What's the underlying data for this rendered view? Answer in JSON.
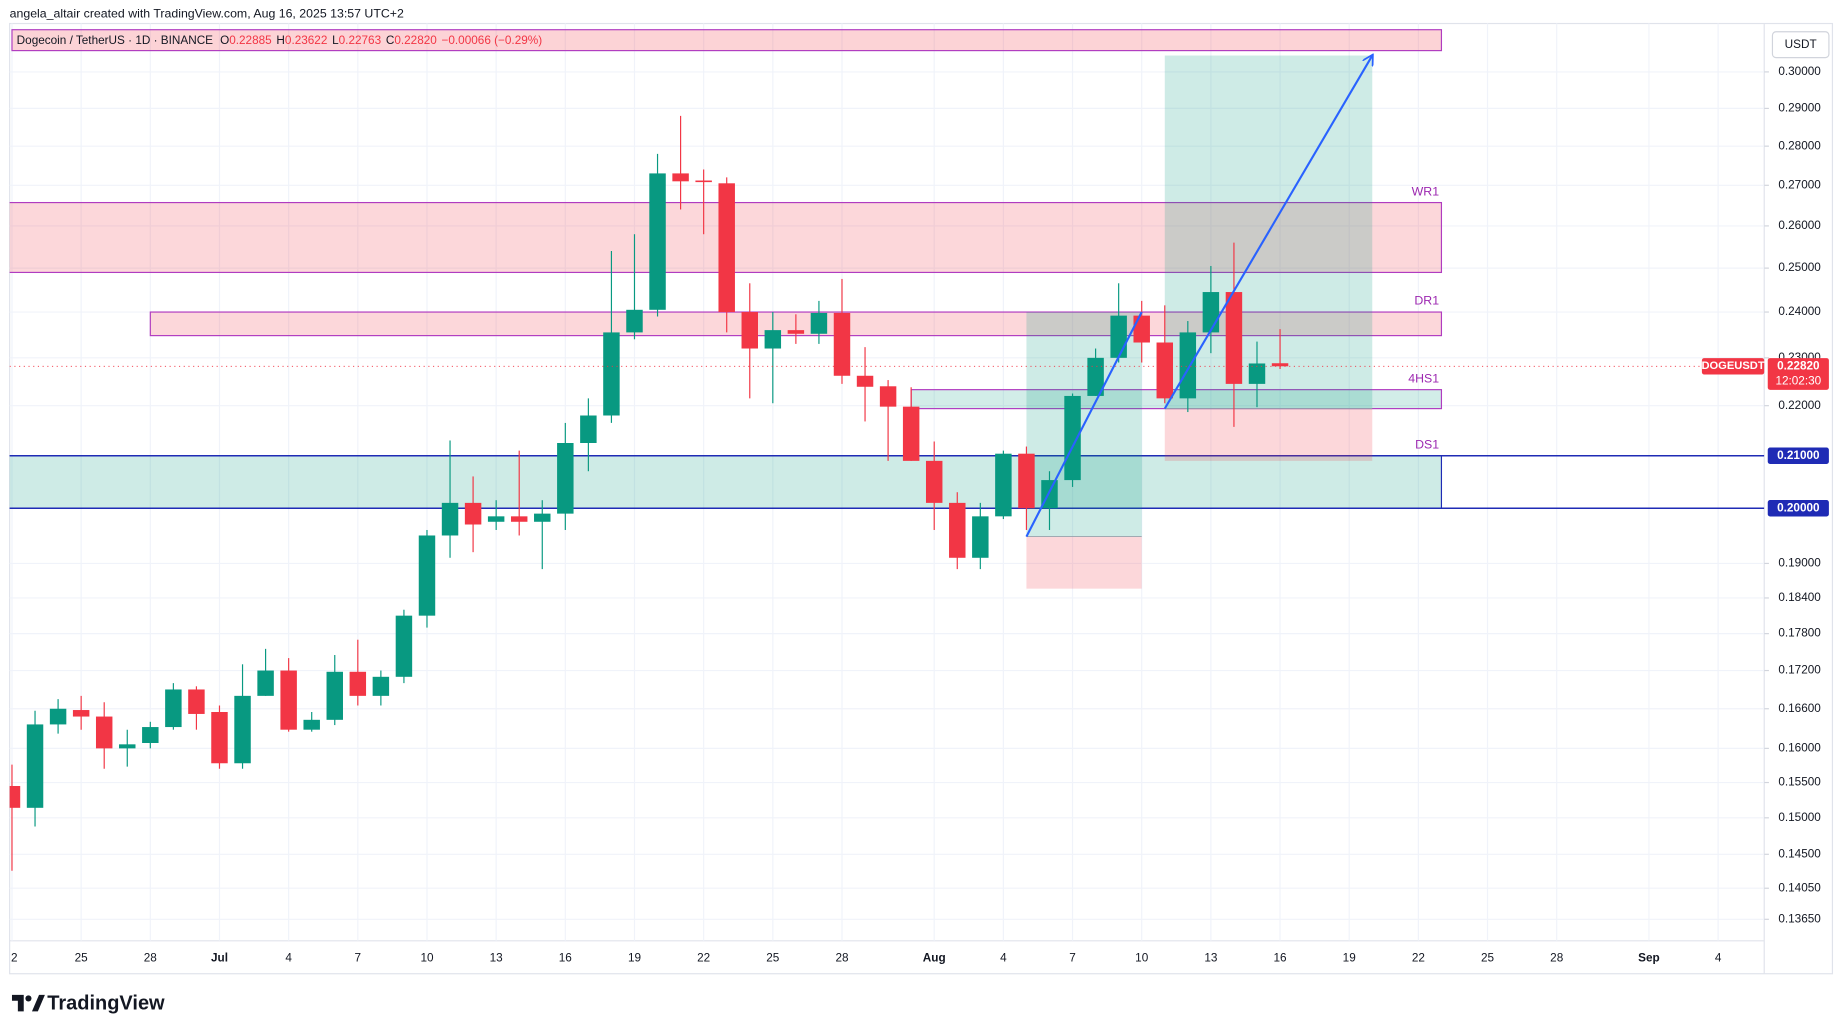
{
  "chart_data": {
    "type": "candlestick",
    "attribution": "angela_altair created with TradingView.com, Aug 16, 2025 13:57 UTC+2",
    "symbol": "Dogecoin / TetherUS · 1D · BINANCE",
    "legend": [
      {
        "label": "O",
        "value": "0.22885"
      },
      {
        "label": "H",
        "value": "0.23622"
      },
      {
        "label": "L",
        "value": "0.22763"
      },
      {
        "label": "C",
        "value": "0.22820"
      }
    ],
    "change": "−0.00066 (−0.29%)",
    "currency": "USDT",
    "ticker": "DOGEUSDT",
    "last_price": {
      "value": 0.2282,
      "label": "0.22820"
    },
    "countdown": "12:02:30",
    "brand": "TradingView",
    "up_color": "#089981",
    "down_color": "#f23645",
    "x": [
      "2025-06-22",
      "2025-06-23",
      "2025-06-24",
      "2025-06-25",
      "2025-06-26",
      "2025-06-27",
      "2025-06-28",
      "2025-06-29",
      "2025-06-30",
      "2025-07-01",
      "2025-07-02",
      "2025-07-03",
      "2025-07-04",
      "2025-07-05",
      "2025-07-06",
      "2025-07-07",
      "2025-07-08",
      "2025-07-09",
      "2025-07-10",
      "2025-07-11",
      "2025-07-12",
      "2025-07-13",
      "2025-07-14",
      "2025-07-15",
      "2025-07-16",
      "2025-07-17",
      "2025-07-18",
      "2025-07-19",
      "2025-07-20",
      "2025-07-21",
      "2025-07-22",
      "2025-07-23",
      "2025-07-24",
      "2025-07-25",
      "2025-07-26",
      "2025-07-27",
      "2025-07-28",
      "2025-07-29",
      "2025-07-30",
      "2025-07-31",
      "2025-08-01",
      "2025-08-02",
      "2025-08-03",
      "2025-08-04",
      "2025-08-05",
      "2025-08-06",
      "2025-08-07",
      "2025-08-08",
      "2025-08-09",
      "2025-08-10",
      "2025-08-11",
      "2025-08-12",
      "2025-08-13",
      "2025-08-14",
      "2025-08-15",
      "2025-08-16"
    ],
    "open": [
      0.1545,
      0.1514,
      0.1636,
      0.1658,
      0.1648,
      0.16,
      0.1608,
      0.1632,
      0.169,
      0.1655,
      0.1578,
      0.168,
      0.172,
      0.1628,
      0.1643,
      0.1718,
      0.168,
      0.171,
      0.181,
      0.195,
      0.201,
      0.1975,
      0.1985,
      0.1975,
      0.199,
      0.2125,
      0.218,
      0.2355,
      0.2405,
      0.273,
      0.2712,
      0.2705,
      0.24,
      0.232,
      0.236,
      0.2352,
      0.2398,
      0.2262,
      0.224,
      0.2198,
      0.209,
      0.201,
      0.191,
      0.1985,
      0.2104,
      0.2,
      0.2053,
      0.222,
      0.23,
      0.2392,
      0.2333,
      0.2215,
      0.2355,
      0.2445,
      0.2245,
      0.22885
    ],
    "high": [
      0.1576,
      0.1657,
      0.1675,
      0.168,
      0.167,
      0.1628,
      0.164,
      0.17,
      0.1695,
      0.1665,
      0.173,
      0.1755,
      0.174,
      0.1655,
      0.1745,
      0.177,
      0.172,
      0.182,
      0.196,
      0.213,
      0.206,
      0.2015,
      0.211,
      0.2015,
      0.2165,
      0.2215,
      0.254,
      0.258,
      0.278,
      0.288,
      0.274,
      0.272,
      0.2465,
      0.24,
      0.2395,
      0.2425,
      0.2475,
      0.2323,
      0.2253,
      0.2238,
      0.2128,
      0.203,
      0.201,
      0.211,
      0.2118,
      0.207,
      0.2225,
      0.232,
      0.2465,
      0.2425,
      0.2415,
      0.238,
      0.2505,
      0.256,
      0.2335,
      0.23622
    ],
    "low": [
      0.1428,
      0.1488,
      0.1622,
      0.1628,
      0.157,
      0.1573,
      0.16,
      0.1628,
      0.1628,
      0.157,
      0.157,
      0.168,
      0.1625,
      0.1625,
      0.1635,
      0.1665,
      0.1665,
      0.17,
      0.179,
      0.191,
      0.192,
      0.196,
      0.195,
      0.189,
      0.196,
      0.207,
      0.2165,
      0.234,
      0.239,
      0.264,
      0.258,
      0.2355,
      0.2215,
      0.2205,
      0.233,
      0.233,
      0.2245,
      0.2168,
      0.209,
      0.209,
      0.196,
      0.189,
      0.189,
      0.198,
      0.196,
      0.196,
      0.204,
      0.222,
      0.229,
      0.229,
      0.2205,
      0.2187,
      0.231,
      0.2157,
      0.2197,
      0.22763
    ],
    "close": [
      0.1514,
      0.1636,
      0.166,
      0.1648,
      0.16,
      0.1606,
      0.1632,
      0.169,
      0.1652,
      0.1578,
      0.168,
      0.172,
      0.1628,
      0.1643,
      0.1718,
      0.168,
      0.171,
      0.181,
      0.195,
      0.201,
      0.197,
      0.1985,
      0.1975,
      0.199,
      0.2125,
      0.218,
      0.2355,
      0.2405,
      0.273,
      0.271,
      0.2708,
      0.24,
      0.232,
      0.236,
      0.2352,
      0.2398,
      0.2262,
      0.2239,
      0.2198,
      0.209,
      0.201,
      0.191,
      0.1985,
      0.2104,
      0.2,
      0.2053,
      0.222,
      0.23,
      0.2392,
      0.2333,
      0.2215,
      0.2355,
      0.2445,
      0.2245,
      0.2288,
      0.2282
    ],
    "xlim": [
      "2025-06-22",
      "2025-09-06"
    ],
    "xticks": [
      {
        "value": "2025-06-22",
        "label": "2"
      },
      {
        "value": "2025-06-25",
        "label": "25"
      },
      {
        "value": "2025-06-28",
        "label": "28"
      },
      {
        "value": "2025-07-01",
        "label": "Jul"
      },
      {
        "value": "2025-07-04",
        "label": "4"
      },
      {
        "value": "2025-07-07",
        "label": "7"
      },
      {
        "value": "2025-07-10",
        "label": "10"
      },
      {
        "value": "2025-07-13",
        "label": "13"
      },
      {
        "value": "2025-07-16",
        "label": "16"
      },
      {
        "value": "2025-07-19",
        "label": "19"
      },
      {
        "value": "2025-07-22",
        "label": "22"
      },
      {
        "value": "2025-07-25",
        "label": "25"
      },
      {
        "value": "2025-07-28",
        "label": "28"
      },
      {
        "value": "2025-08-01",
        "label": "Aug"
      },
      {
        "value": "2025-08-04",
        "label": "4"
      },
      {
        "value": "2025-08-07",
        "label": "7"
      },
      {
        "value": "2025-08-10",
        "label": "10"
      },
      {
        "value": "2025-08-13",
        "label": "13"
      },
      {
        "value": "2025-08-16",
        "label": "16"
      },
      {
        "value": "2025-08-19",
        "label": "19"
      },
      {
        "value": "2025-08-22",
        "label": "22"
      },
      {
        "value": "2025-08-25",
        "label": "25"
      },
      {
        "value": "2025-08-28",
        "label": "28"
      },
      {
        "value": "2025-09-01",
        "label": "Sep"
      },
      {
        "value": "2025-09-04",
        "label": "4"
      }
    ],
    "ylim": [
      0.1338,
      0.3138
    ],
    "log": true,
    "grid": true,
    "yticks": [
      {
        "value": 0.3,
        "label": "0.30000"
      },
      {
        "value": 0.29,
        "label": "0.29000"
      },
      {
        "value": 0.28,
        "label": "0.28000"
      },
      {
        "value": 0.27,
        "label": "0.27000"
      },
      {
        "value": 0.26,
        "label": "0.26000"
      },
      {
        "value": 0.25,
        "label": "0.25000"
      },
      {
        "value": 0.24,
        "label": "0.24000"
      },
      {
        "value": 0.23,
        "label": "0.23000"
      },
      {
        "value": 0.22,
        "label": "0.22000"
      },
      {
        "value": 0.19,
        "label": "0.19000"
      },
      {
        "value": 0.184,
        "label": "0.18400"
      },
      {
        "value": 0.178,
        "label": "0.17800"
      },
      {
        "value": 0.172,
        "label": "0.17200"
      },
      {
        "value": 0.166,
        "label": "0.16600"
      },
      {
        "value": 0.16,
        "label": "0.16000"
      },
      {
        "value": 0.155,
        "label": "0.15500"
      },
      {
        "value": 0.15,
        "label": "0.15000"
      },
      {
        "value": 0.145,
        "label": "0.14500"
      },
      {
        "value": 0.1405,
        "label": "0.14050"
      },
      {
        "value": 0.1365,
        "label": "0.13650"
      }
    ],
    "levels": [
      {
        "value": 0.21,
        "label": "0.21000"
      },
      {
        "value": 0.2,
        "label": "0.20000"
      }
    ],
    "level_color": "#1f2bb5",
    "zones": [
      {
        "top": 0.312,
        "bottom": 0.306,
        "from": "2025-06-22",
        "to": "2025-08-23",
        "fill": "rgba(242,54,69,0.22)",
        "border": "#b03cc0"
      },
      {
        "label": "WR1",
        "top": 0.2657,
        "bottom": 0.249,
        "from": "2025-06-21",
        "to": "2025-08-23",
        "fill": "rgba(242,54,69,0.2)",
        "border": "#b03cc0"
      },
      {
        "label": "DR1",
        "top": 0.24,
        "bottom": 0.2348,
        "from": "2025-06-28",
        "to": "2025-08-23",
        "fill": "rgba(242,54,69,0.2)",
        "border": "#b03cc0"
      },
      {
        "label": "4HS1",
        "top": 0.2233,
        "bottom": 0.2194,
        "from": "2025-07-31",
        "to": "2025-08-23",
        "fill": "rgba(8,153,129,0.18)",
        "border": "#b03cc0"
      },
      {
        "label": "DS1",
        "top": 0.21,
        "bottom": 0.2,
        "from": "2025-06-21",
        "to": "2025-08-23",
        "fill": "rgba(8,153,129,0.2)",
        "border": "#1f2bb5"
      }
    ],
    "positions": [
      {
        "from": "2025-08-05",
        "to": "2025-08-10",
        "entry": 0.1948,
        "target": 0.24,
        "stop": 0.1856,
        "arrow": false
      },
      {
        "from": "2025-08-11",
        "to": "2025-08-20",
        "entry": 0.2194,
        "target": 0.3046,
        "stop": 0.209,
        "arrow": true
      }
    ],
    "arrow_color": "#2962ff"
  }
}
